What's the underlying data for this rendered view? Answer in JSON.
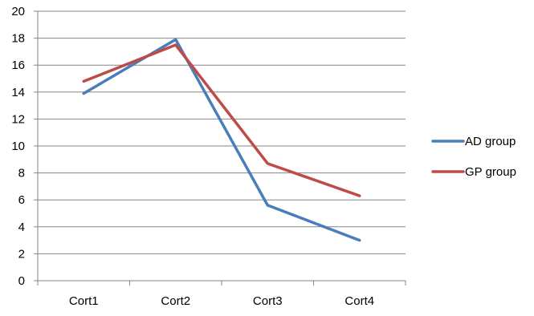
{
  "chart_data": {
    "type": "line",
    "categories": [
      "Cort1",
      "Cort2",
      "Cort3",
      "Cort4"
    ],
    "ylim": [
      0,
      20
    ],
    "yticks": [
      0,
      2,
      4,
      6,
      8,
      10,
      12,
      14,
      16,
      18,
      20
    ],
    "grid": true,
    "legend_position": "right",
    "series": [
      {
        "name": "AD group",
        "color": "#4a7ebb",
        "values": [
          13.9,
          17.9,
          5.6,
          3.0
        ]
      },
      {
        "name": "GP group",
        "color": "#be4b48",
        "values": [
          14.8,
          17.5,
          8.7,
          6.3
        ]
      }
    ]
  }
}
